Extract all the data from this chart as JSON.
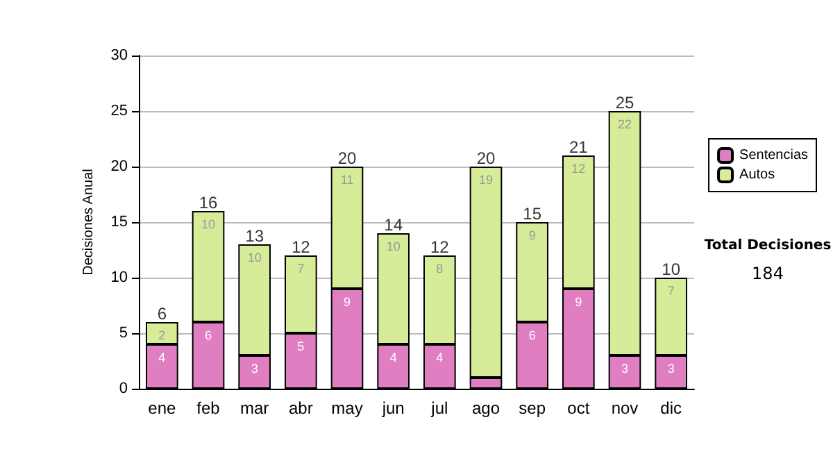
{
  "chart_data": {
    "type": "bar",
    "stacked": true,
    "ylabel": "Decisiones Anual",
    "categories": [
      "ene",
      "feb",
      "mar",
      "abr",
      "may",
      "jun",
      "jul",
      "ago",
      "sep",
      "oct",
      "nov",
      "dic"
    ],
    "series": [
      {
        "name": "Sentencias",
        "color": "#e07ec2",
        "values": [
          4,
          6,
          3,
          5,
          9,
          4,
          4,
          1,
          6,
          9,
          3,
          3
        ],
        "value_labels": [
          "4",
          "6",
          "3",
          "5",
          "9",
          "4",
          "4",
          null,
          "6",
          "9",
          "3",
          "3"
        ]
      },
      {
        "name": "Autos",
        "color": "#d6ec98",
        "values": [
          2,
          10,
          10,
          7,
          11,
          10,
          8,
          19,
          9,
          12,
          22,
          7
        ],
        "value_labels": [
          "2",
          "10",
          "10",
          "7",
          "11",
          "10",
          "8",
          "19",
          "9",
          "12",
          "22",
          "7"
        ]
      }
    ],
    "totals": [
      "6",
      "16",
      "13",
      "12",
      "20",
      "14",
      "12",
      "20",
      "15",
      "21",
      "25",
      "10"
    ],
    "ylim": [
      0,
      30
    ],
    "yticks": [
      0,
      5,
      10,
      15,
      20,
      25,
      30
    ],
    "grid": "y",
    "legend": "right",
    "annotations": [
      "Total Decisiones",
      "184"
    ]
  }
}
